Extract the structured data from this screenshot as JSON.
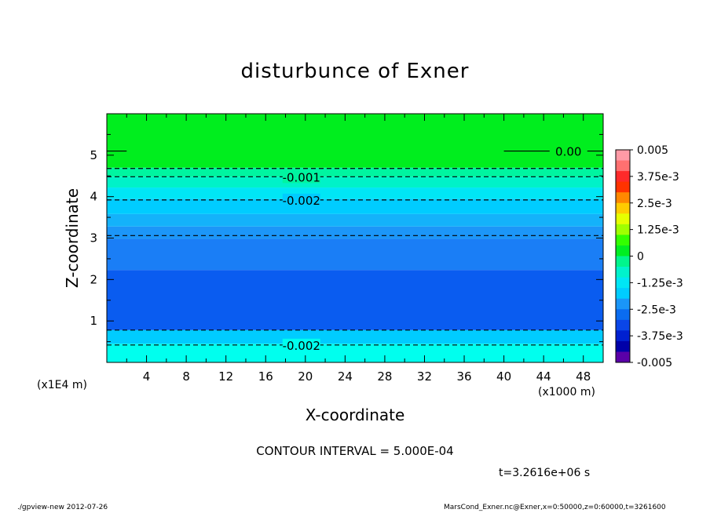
{
  "chart_data": {
    "type": "contour",
    "title": "disturbunce of Exner",
    "xlabel": "X-coordinate",
    "ylabel": "Z-coordinate",
    "x_unit": "(x1000 m)",
    "z_unit": "(x1E4 m)",
    "xlim": [
      0,
      50
    ],
    "ylim": [
      0,
      6
    ],
    "x_ticks": [
      4,
      8,
      12,
      16,
      20,
      24,
      28,
      32,
      36,
      40,
      44,
      48
    ],
    "y_ticks": [
      1,
      2,
      3,
      4,
      5
    ],
    "z_levels": [
      0.45,
      0.78,
      2.23,
      2.98,
      3.28,
      3.58,
      3.95,
      4.22,
      4.48,
      4.7
    ],
    "bands": [
      {
        "z0": 0.0,
        "z1": 0.45,
        "color": "#00ffee"
      },
      {
        "z0": 0.45,
        "z1": 0.78,
        "color": "#00ccff"
      },
      {
        "z0": 0.78,
        "z1": 2.23,
        "color": "#0a5cf0"
      },
      {
        "z0": 2.23,
        "z1": 2.98,
        "color": "#1a7ef6"
      },
      {
        "z0": 2.98,
        "z1": 3.28,
        "color": "#1c96f8"
      },
      {
        "z0": 3.28,
        "z1": 3.58,
        "color": "#14b2fa"
      },
      {
        "z0": 3.58,
        "z1": 3.95,
        "color": "#00ccff"
      },
      {
        "z0": 3.95,
        "z1": 4.22,
        "color": "#00e6f5"
      },
      {
        "z0": 4.22,
        "z1": 4.48,
        "color": "#00f2c8"
      },
      {
        "z0": 4.48,
        "z1": 4.7,
        "color": "#00f5a0"
      },
      {
        "z0": 4.7,
        "z1": 6.0,
        "color": "#00ee1e"
      }
    ],
    "contour_lines": [
      {
        "z": 5.1,
        "dashed": false,
        "x0": 0,
        "x1": 2
      },
      {
        "z": 5.1,
        "dashed": false,
        "x0": 40,
        "x1": 50
      },
      {
        "z": 4.68,
        "dashed": true
      },
      {
        "z": 4.48,
        "dashed": true
      },
      {
        "z": 3.92,
        "dashed": true
      },
      {
        "z": 3.06,
        "dashed": true
      },
      {
        "z": 0.78,
        "dashed": true
      },
      {
        "z": 0.42,
        "dashed": true
      }
    ],
    "contour_labels": [
      {
        "text": "0.00",
        "x": 46.5,
        "z": 5.1
      },
      {
        "text": "-0.001",
        "x": 19.6,
        "z": 4.48
      },
      {
        "text": "-0.002",
        "x": 19.6,
        "z": 3.92
      },
      {
        "text": "-0.002",
        "x": 19.6,
        "z": 0.42
      }
    ],
    "colorbar": {
      "labels": [
        "0.005",
        "3.75e-3",
        "2.5e-3",
        "1.25e-3",
        "0",
        "-1.25e-3",
        "-2.5e-3",
        "-3.75e-3",
        "-0.005"
      ],
      "colors": [
        "#ff9aa6",
        "#ff7070",
        "#ff2a2a",
        "#ff3300",
        "#ff8800",
        "#ffcc00",
        "#e6ff00",
        "#a0ff00",
        "#33ff00",
        "#00ee22",
        "#00f58c",
        "#00f2cc",
        "#00e6f5",
        "#00ccff",
        "#1a96f8",
        "#0a6cf0",
        "#0a46e8",
        "#0020d0",
        "#0000a8",
        "#5a00a8"
      ]
    }
  },
  "contour_interval": "CONTOUR INTERVAL = 5.000E-04",
  "time_label": "t=3.2616e+06  s",
  "footer_left": "./gpview-new   2012-07-26",
  "footer_right": "MarsCond_Exner.nc@Exner,x=0:50000,z=0:60000,t=3261600"
}
